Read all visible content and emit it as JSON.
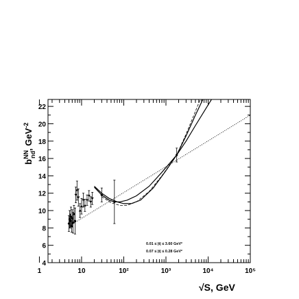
{
  "chart_data": {
    "type": "scatter",
    "xlabel": "√S, GeV",
    "ylabel": "b^NN_nd, GeV^-2",
    "x_scale": "log",
    "xlim": [
      1.6,
      100000
    ],
    "ylim": [
      4,
      22.8
    ],
    "grid": false,
    "x_ticks": [
      {
        "value": 1,
        "label": "1"
      },
      {
        "value": 10,
        "label": "10"
      },
      {
        "value": 100,
        "label": "10²"
      },
      {
        "value": 1000,
        "label": "10³"
      },
      {
        "value": 10000,
        "label": "10⁴"
      },
      {
        "value": 100000,
        "label": "10⁵"
      }
    ],
    "y_ticks": [
      4,
      6,
      8,
      10,
      12,
      14,
      16,
      18,
      20,
      22
    ],
    "legend": {
      "placement": "bottom-right",
      "entries": [
        {
          "label": "0.01 ≤ |t| ≤ 3.60 GeV²",
          "line": "solid"
        },
        {
          "label": "0.07 ≤ |t| ≤ 0.28 GeV²",
          "line": "dashed"
        }
      ]
    },
    "points": [
      {
        "x": 5.0,
        "y": 8.5,
        "err": 0.9,
        "marker": "circle"
      },
      {
        "x": 5.2,
        "y": 9.0,
        "err": 1.0,
        "marker": "circle"
      },
      {
        "x": 5.4,
        "y": 8.8,
        "err": 0.8,
        "marker": "circle"
      },
      {
        "x": 5.6,
        "y": 9.3,
        "err": 1.1,
        "marker": "circle"
      },
      {
        "x": 5.8,
        "y": 8.2,
        "err": 0.7,
        "marker": "circle"
      },
      {
        "x": 6.0,
        "y": 9.1,
        "err": 1.0,
        "marker": "circle"
      },
      {
        "x": 6.3,
        "y": 8.6,
        "err": 1.2,
        "marker": "circle"
      },
      {
        "x": 6.6,
        "y": 9.6,
        "err": 1.0,
        "marker": "circle"
      },
      {
        "x": 7.0,
        "y": 8.8,
        "err": 1.5,
        "marker": "circle"
      },
      {
        "x": 7.3,
        "y": 11.8,
        "err": 0.9,
        "marker": "triangle-down"
      },
      {
        "x": 7.8,
        "y": 12.3,
        "err": 1.1,
        "marker": "triangle-down"
      },
      {
        "x": 8.4,
        "y": 11.5,
        "err": 1.0,
        "marker": "triangle-down"
      },
      {
        "x": 9.2,
        "y": 10.0,
        "err": 0.8,
        "marker": "triangle-up"
      },
      {
        "x": 10.0,
        "y": 10.5,
        "err": 0.9,
        "marker": "triangle-up"
      },
      {
        "x": 11.0,
        "y": 11.2,
        "err": 0.8,
        "marker": "triangle-down"
      },
      {
        "x": 12.0,
        "y": 10.6,
        "err": 0.7,
        "marker": "triangle-up"
      },
      {
        "x": 13.5,
        "y": 11.2,
        "err": 0.6,
        "marker": "triangle-down"
      },
      {
        "x": 15.0,
        "y": 11.7,
        "err": 0.6,
        "marker": "triangle-down"
      },
      {
        "x": 16.5,
        "y": 11.0,
        "err": 0.6,
        "marker": "triangle-down"
      },
      {
        "x": 18.0,
        "y": 11.4,
        "err": 0.7,
        "marker": "triangle-down"
      },
      {
        "x": 30.0,
        "y": 11.8,
        "err": 0.8,
        "marker": "circle"
      },
      {
        "x": 60.0,
        "y": 11.0,
        "err": 2.5,
        "marker": "circle"
      },
      {
        "x": 1800,
        "y": 16.4,
        "err": 0.8,
        "marker": "circle"
      }
    ],
    "series": [
      {
        "style": "solid",
        "curve": {
          "x": [
            20,
            30,
            45,
            60,
            80,
            120,
            200,
            400,
            800,
            1800,
            3000,
            5000,
            8000,
            12000
          ],
          "y": [
            12.7,
            11.8,
            11.2,
            11.0,
            11.0,
            11.2,
            11.7,
            12.8,
            14.4,
            16.4,
            18.0,
            19.8,
            21.4,
            22.8
          ]
        }
      },
      {
        "style": "solid",
        "curve": {
          "x": [
            20,
            30,
            45,
            70,
            100,
            150,
            250,
            500,
            1000,
            1800,
            3000,
            5000,
            7500
          ],
          "y": [
            12.8,
            12.0,
            11.4,
            11.0,
            10.8,
            10.8,
            11.2,
            12.6,
            14.6,
            16.4,
            18.6,
            21.0,
            22.8
          ]
        }
      },
      {
        "style": "dashed",
        "curve": {
          "x": [
            30,
            50,
            80,
            120,
            200,
            400,
            800,
            1800,
            3000,
            4500,
            6500
          ],
          "y": [
            11.6,
            10.9,
            10.6,
            10.6,
            11.0,
            12.2,
            14.0,
            16.4,
            18.8,
            20.9,
            22.8
          ]
        }
      },
      {
        "style": "dotted",
        "curve": {
          "x": [
            5,
            100000
          ],
          "y": [
            8.2,
            21.0
          ]
        }
      }
    ]
  }
}
